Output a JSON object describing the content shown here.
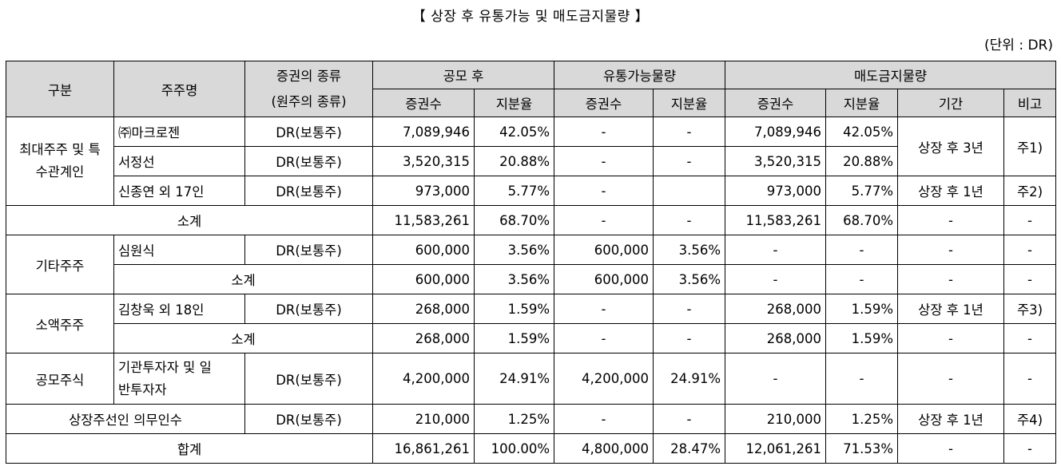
{
  "title": "【 상장 후 유통가능 및 매도금지물량 】",
  "unit": "(단위 : DR)",
  "headers": {
    "category": "구분",
    "holder": "주주명",
    "security_line1": "증권의 종류",
    "security_line2": "(원주의 종류)",
    "after_ipo": "공모 후",
    "tradable": "유통가능물량",
    "lockup": "매도금지물량",
    "shares": "증권수",
    "ratio": "지분율",
    "period": "기간",
    "note": "비고"
  },
  "groups": {
    "major": "최대주주 및 특수관계인",
    "other": "기타주주",
    "minority": "소액주주",
    "public": "공모주식",
    "underwriter": "상장주선인 의무인수",
    "total": "합계"
  },
  "rows": [
    {
      "holder": "㈜마크로젠",
      "type": "DR(보통주)",
      "ipo_shares": "7,089,946",
      "ipo_ratio": "42.05%",
      "trade_shares": "-",
      "trade_ratio": "-",
      "lock_shares": "7,089,946",
      "lock_ratio": "42.05%",
      "period": "상장 후 3년",
      "note": "주1)"
    },
    {
      "holder": "서정선",
      "type": "DR(보통주)",
      "ipo_shares": "3,520,315",
      "ipo_ratio": "20.88%",
      "trade_shares": "-",
      "trade_ratio": "-",
      "lock_shares": "3,520,315",
      "lock_ratio": "20.88%"
    },
    {
      "holder": "신종연 외 17인",
      "type": "DR(보통주)",
      "ipo_shares": "973,000",
      "ipo_ratio": "5.77%",
      "trade_shares": "-",
      "trade_ratio": "",
      "lock_shares": "973,000",
      "lock_ratio": "5.77%",
      "period": "상장 후 1년",
      "note": "주2)"
    },
    {
      "holder": "소계",
      "ipo_shares": "11,583,261",
      "ipo_ratio": "68.70%",
      "trade_shares": "-",
      "trade_ratio": "-",
      "lock_shares": "11,583,261",
      "lock_ratio": "68.70%",
      "period": "-",
      "note": "-"
    },
    {
      "holder": "심원식",
      "type": "DR(보통주)",
      "ipo_shares": "600,000",
      "ipo_ratio": "3.56%",
      "trade_shares": "600,000",
      "trade_ratio": "3.56%",
      "lock_shares": "-",
      "lock_ratio": "-",
      "period": "-",
      "note": "-"
    },
    {
      "holder": "소계",
      "ipo_shares": "600,000",
      "ipo_ratio": "3.56%",
      "trade_shares": "600,000",
      "trade_ratio": "3.56%",
      "lock_shares": "-",
      "lock_ratio": "-",
      "period": "-",
      "note": "-"
    },
    {
      "holder": "김창욱 외 18인",
      "type": "DR(보통주)",
      "ipo_shares": "268,000",
      "ipo_ratio": "1.59%",
      "trade_shares": "-",
      "trade_ratio": "-",
      "lock_shares": "268,000",
      "lock_ratio": "1.59%",
      "period": "상장 후 1년",
      "note": "주3)"
    },
    {
      "holder": "소계",
      "ipo_shares": "268,000",
      "ipo_ratio": "1.59%",
      "trade_shares": "-",
      "trade_ratio": "-",
      "lock_shares": "268,000",
      "lock_ratio": "1.59%",
      "period": "-",
      "note": "-"
    },
    {
      "holder": "기관투자자 및 일반투자자",
      "type": "DR(보통주)",
      "ipo_shares": "4,200,000",
      "ipo_ratio": "24.91%",
      "trade_shares": "4,200,000",
      "trade_ratio": "24.91%",
      "lock_shares": "-",
      "lock_ratio": "-",
      "period": "-",
      "note": "-"
    },
    {
      "type": "DR(보통주)",
      "ipo_shares": "210,000",
      "ipo_ratio": "1.25%",
      "trade_shares": "-",
      "trade_ratio": "-",
      "lock_shares": "210,000",
      "lock_ratio": "1.25%",
      "period": "상장 후 1년",
      "note": "주4)"
    },
    {
      "ipo_shares": "16,861,261",
      "ipo_ratio": "100.00%",
      "trade_shares": "4,800,000",
      "trade_ratio": "28.47%",
      "lock_shares": "12,061,261",
      "lock_ratio": "71.53%",
      "period": "-",
      "note": "-"
    }
  ]
}
